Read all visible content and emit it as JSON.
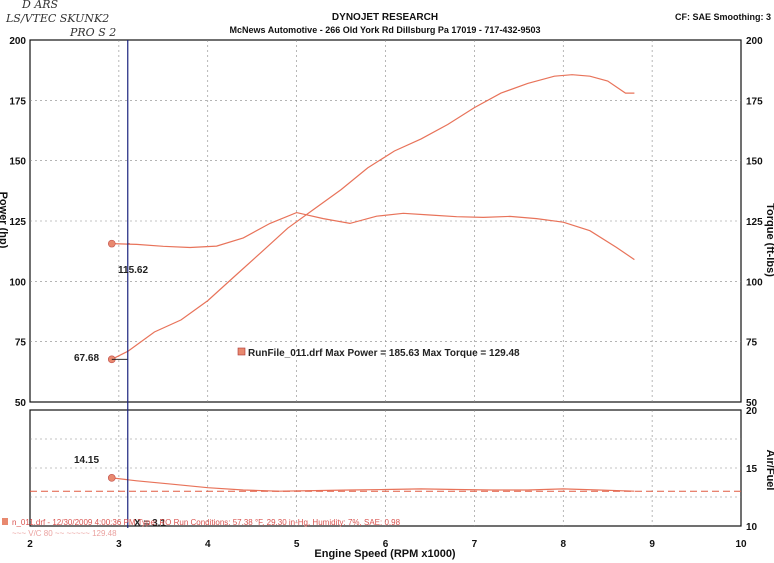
{
  "handwriting": {
    "line1": "D ARS",
    "line2": "LS/VTEC  SKUNK2",
    "line3": "PRO  S  2"
  },
  "header": {
    "title": "DYNOJET RESEARCH",
    "subtitle": "McNews Automotive - 266 Old York Rd Dillsburg Pa 17019 - 717-432-9503",
    "corner": "CF: SAE  Smoothing: 3"
  },
  "colors": {
    "curve": "#e8735a",
    "marker": "#e8896f",
    "cursor": "#1a237e",
    "dash": "#e05a40"
  },
  "chart_data": [
    {
      "type": "line",
      "xlabel": "Engine Speed (RPM x1000)",
      "xlim": [
        2,
        10
      ],
      "x_ticks": [
        "2",
        "3",
        "4",
        "5",
        "6",
        "7",
        "8",
        "9",
        "10"
      ],
      "ylabel": "Power (hp)",
      "ylim": [
        50,
        200
      ],
      "y_ticks_left": [
        "50",
        "75",
        "100",
        "125",
        "150",
        "175",
        "200"
      ],
      "ylabel_right": "Torque (ft-lbs)",
      "ylim_right": [
        50,
        200
      ],
      "y_ticks_right": [
        "50",
        "75",
        "100",
        "125",
        "150",
        "175",
        "200"
      ],
      "grid": true,
      "series": [
        {
          "name": "Power",
          "x": [
            2.92,
            3.1,
            3.4,
            3.7,
            4.0,
            4.3,
            4.6,
            4.9,
            5.2,
            5.5,
            5.8,
            6.1,
            6.4,
            6.7,
            7.0,
            7.3,
            7.6,
            7.9,
            8.1,
            8.3,
            8.5,
            8.7,
            8.8
          ],
          "values": [
            67.68,
            71,
            79,
            84,
            92,
            102,
            112,
            122,
            130,
            138,
            147,
            154,
            159,
            165,
            172,
            178,
            182,
            185,
            185.63,
            185,
            183,
            178,
            178
          ]
        },
        {
          "name": "Torque",
          "x": [
            2.92,
            3.2,
            3.5,
            3.8,
            4.1,
            4.4,
            4.7,
            5.0,
            5.3,
            5.6,
            5.9,
            6.2,
            6.5,
            6.8,
            7.1,
            7.4,
            7.7,
            8.0,
            8.3,
            8.6,
            8.8
          ],
          "values": [
            115.62,
            115.3,
            114.5,
            114,
            114.6,
            118,
            124,
            128.5,
            126,
            124,
            127,
            128.2,
            127.5,
            126.8,
            126.5,
            126.9,
            126,
            124.5,
            121,
            114,
            109
          ]
        }
      ],
      "annotations": {
        "power_start": "67.68",
        "torque_start": "115.62",
        "legend": "RunFile_011.drf Max Power = 185.63    Max Torque = 129.48"
      }
    },
    {
      "type": "line",
      "xlim": [
        2,
        10
      ],
      "ylabel": "Air/Fuel",
      "ylim": [
        10,
        20
      ],
      "y_ticks_right": [
        "10",
        "15",
        "20"
      ],
      "grid": true,
      "series": [
        {
          "name": "Air/Fuel",
          "x": [
            2.92,
            3.2,
            3.6,
            4.0,
            4.4,
            4.8,
            5.2,
            5.6,
            6.0,
            6.4,
            6.8,
            7.2,
            7.6,
            8.0,
            8.4,
            8.8
          ],
          "values": [
            14.15,
            13.9,
            13.6,
            13.3,
            13.1,
            13.0,
            13.05,
            13.1,
            13.15,
            13.2,
            13.15,
            13.1,
            13.1,
            13.2,
            13.1,
            13.0
          ]
        }
      ],
      "reference_line": 13.0,
      "annotations": {
        "afr_start": "14.15",
        "cursor": "X = 3.1"
      }
    }
  ],
  "run_info": {
    "line1": "n_011.drf - 12/30/2009 4:00:36 PM Type: RO  Run Conditions: 57.38 °F, 29.30 in-Hg,  Humidity: 7%, SAE: 0.98",
    "line2": "~~~ V/C 80  ~~ ~~~~~  129.48"
  }
}
